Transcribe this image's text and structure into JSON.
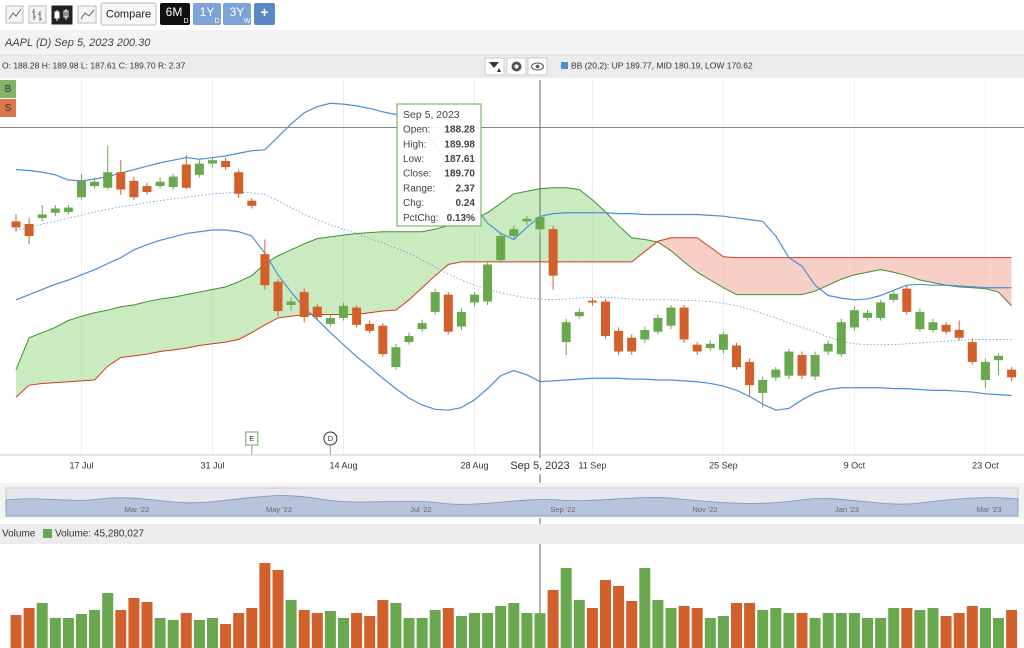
{
  "toolbar": {
    "compare": "Compare",
    "ranges": [
      {
        "label": "6M",
        "sub": "D"
      },
      {
        "label": "1Y",
        "sub": "D"
      },
      {
        "label": "3Y",
        "sub": "W"
      }
    ],
    "add": "+"
  },
  "header": {
    "symbol_line": "AAPL  (D) Sep 5, 2023 200.30",
    "ohlc_line": "O: 188.28 H: 189.98 L: 187.61 C: 189.70 R: 2.37",
    "bb_line": "BB (20,2): UP 189.77, MID 180.19, LOW 170.62"
  },
  "side_buttons": [
    "B",
    "S"
  ],
  "tooltip": {
    "title": "Sep 5, 2023",
    "rows": [
      [
        "Open:",
        "188.28"
      ],
      [
        "High:",
        "189.98"
      ],
      [
        "Low:",
        "187.61"
      ],
      [
        "Close:",
        "189.70"
      ],
      [
        "Range:",
        "2.37"
      ],
      [
        "Chg:",
        "0.24"
      ],
      [
        "PctChg:",
        "0.13%"
      ]
    ]
  },
  "navigator": {
    "labels": [
      "Mar '22",
      "May '22",
      "Jul '22",
      "Sep '22",
      "Nov '22",
      "Jan '23",
      "Mar '23"
    ]
  },
  "chart_data": [
    {
      "type": "candlestick",
      "up_color": "#6aa84f",
      "down_color": "#d2602c",
      "ylim": [
        162.1,
        205.6
      ],
      "crosshair_label": "Sep 5, 2023",
      "reference_line": 200.1,
      "xticks": [
        {
          "value": 5,
          "label": "17 Jul"
        },
        {
          "value": 15,
          "label": "31 Jul"
        },
        {
          "value": 25,
          "label": "14 Aug"
        },
        {
          "value": 35,
          "label": "28 Aug"
        },
        {
          "value": 44,
          "label": "11 Sep"
        },
        {
          "value": 54,
          "label": "25 Sep"
        },
        {
          "value": 64,
          "label": "9 Oct"
        },
        {
          "value": 74,
          "label": "23 Oct"
        }
      ],
      "events": [
        {
          "label": "E",
          "value": 18
        },
        {
          "label": "D",
          "value": 24
        }
      ],
      "ohlc": [
        [
          189.2,
          190.0,
          188.0,
          188.5
        ],
        [
          188.9,
          189.6,
          186.6,
          187.5
        ],
        [
          189.6,
          191.1,
          189.2,
          190.0
        ],
        [
          190.2,
          191.1,
          189.8,
          190.7
        ],
        [
          190.3,
          191.1,
          190.0,
          190.8
        ],
        [
          192.0,
          194.7,
          191.7,
          193.9
        ],
        [
          193.3,
          194.3,
          193.0,
          193.8
        ],
        [
          193.1,
          198.0,
          192.9,
          194.9
        ],
        [
          194.9,
          196.3,
          192.3,
          192.9
        ],
        [
          193.9,
          194.4,
          191.7,
          192.0
        ],
        [
          193.3,
          193.7,
          192.3,
          192.6
        ],
        [
          193.3,
          194.3,
          193.0,
          193.8
        ],
        [
          193.2,
          194.7,
          192.9,
          194.4
        ],
        [
          195.8,
          196.9,
          192.9,
          193.1
        ],
        [
          194.6,
          196.3,
          194.3,
          195.9
        ],
        [
          195.9,
          196.6,
          195.5,
          196.3
        ],
        [
          196.2,
          196.6,
          195.2,
          195.5
        ],
        [
          194.9,
          195.2,
          191.9,
          192.4
        ],
        [
          191.6,
          191.9,
          190.7,
          191.0
        ],
        [
          185.4,
          187.1,
          181.3,
          181.8
        ],
        [
          182.2,
          182.5,
          178.2,
          178.8
        ],
        [
          179.5,
          180.4,
          178.9,
          179.9
        ],
        [
          181.0,
          181.4,
          177.5,
          178.1
        ],
        [
          179.3,
          179.6,
          177.8,
          178.1
        ],
        [
          177.3,
          178.4,
          177.0,
          178.0
        ],
        [
          178.0,
          179.8,
          177.7,
          179.4
        ],
        [
          179.2,
          179.5,
          176.9,
          177.2
        ],
        [
          177.3,
          177.7,
          176.2,
          176.5
        ],
        [
          177.1,
          177.4,
          173.5,
          173.8
        ],
        [
          172.3,
          175.0,
          172.0,
          174.6
        ],
        [
          175.2,
          176.3,
          174.9,
          175.9
        ],
        [
          176.7,
          177.8,
          176.4,
          177.4
        ],
        [
          178.7,
          181.4,
          178.4,
          181.0
        ],
        [
          180.7,
          181.0,
          176.1,
          176.4
        ],
        [
          177.0,
          179.1,
          176.6,
          178.7
        ],
        [
          179.8,
          181.0,
          179.4,
          180.7
        ],
        [
          179.9,
          184.4,
          179.5,
          184.2
        ],
        [
          184.7,
          187.9,
          184.4,
          187.5
        ],
        [
          187.5,
          188.7,
          187.2,
          188.3
        ],
        [
          189.2,
          189.8,
          188.8,
          189.5
        ],
        [
          188.28,
          189.98,
          187.61,
          189.7
        ],
        [
          188.3,
          188.7,
          181.3,
          182.9
        ],
        [
          175.2,
          177.9,
          173.7,
          177.5
        ],
        [
          178.2,
          179.1,
          177.9,
          178.7
        ],
        [
          180.0,
          180.3,
          179.4,
          179.8
        ],
        [
          179.9,
          180.2,
          175.6,
          175.9
        ],
        [
          176.5,
          176.9,
          173.7,
          174.1
        ],
        [
          175.7,
          176.1,
          173.7,
          174.1
        ],
        [
          175.5,
          177.0,
          175.1,
          176.6
        ],
        [
          176.4,
          178.4,
          176.1,
          178.0
        ],
        [
          177.1,
          179.5,
          176.7,
          179.2
        ],
        [
          179.2,
          179.5,
          175.1,
          175.5
        ],
        [
          174.9,
          175.2,
          173.7,
          174.1
        ],
        [
          174.5,
          175.4,
          174.2,
          175.0
        ],
        [
          174.3,
          176.4,
          173.9,
          176.1
        ],
        [
          174.8,
          175.1,
          172.0,
          172.3
        ],
        [
          172.9,
          173.3,
          169.0,
          170.2
        ],
        [
          169.3,
          171.2,
          167.6,
          170.8
        ],
        [
          171.1,
          172.3,
          170.7,
          172.0
        ],
        [
          171.3,
          174.4,
          170.9,
          174.1
        ],
        [
          173.7,
          174.1,
          170.9,
          171.3
        ],
        [
          171.2,
          174.1,
          170.8,
          173.7
        ],
        [
          174.1,
          175.4,
          173.7,
          175.0
        ],
        [
          173.8,
          177.9,
          173.5,
          177.5
        ],
        [
          176.9,
          179.3,
          176.5,
          178.9
        ],
        [
          178.0,
          178.9,
          177.7,
          178.6
        ],
        [
          178.0,
          180.1,
          177.7,
          179.8
        ],
        [
          180.1,
          181.1,
          179.8,
          180.8
        ],
        [
          181.4,
          181.7,
          178.4,
          178.7
        ],
        [
          176.7,
          179.1,
          176.4,
          178.7
        ],
        [
          176.6,
          177.9,
          176.3,
          177.5
        ],
        [
          177.2,
          177.5,
          176.1,
          176.4
        ],
        [
          176.6,
          177.7,
          175.4,
          175.7
        ],
        [
          175.2,
          175.6,
          172.6,
          172.9
        ],
        [
          170.8,
          173.3,
          169.9,
          172.9
        ],
        [
          173.1,
          173.9,
          171.4,
          173.6
        ],
        [
          172.0,
          172.3,
          170.7,
          171.1
        ]
      ],
      "bollinger": {
        "color": "#4a8fd8",
        "upper": [
          195.2,
          195.1,
          194.9,
          194.6,
          194.0,
          193.9,
          194.1,
          194.4,
          194.8,
          195.2,
          195.6,
          196.0,
          196.3,
          196.6,
          196.4,
          196.6,
          196.8,
          197.1,
          197.4,
          197.5,
          199.0,
          200.5,
          201.8,
          202.5,
          202.9,
          202.8,
          202.6,
          202.3,
          201.9,
          201.6,
          200.8,
          199.8,
          198.0,
          195.5,
          193.0,
          191.0,
          189.0,
          187.8,
          187.1,
          188.5,
          189.77,
          190.1,
          190.2,
          190.2,
          190.2,
          190.2,
          190.1,
          190.1,
          190.0,
          190.0,
          190.0,
          190.0,
          190.0,
          189.9,
          189.8,
          189.6,
          189.4,
          189.2,
          187.5,
          185.0,
          184.0,
          181.8,
          180.6,
          180.3,
          180.1,
          180.2,
          180.6,
          181.2,
          181.8,
          181.9,
          181.8,
          181.8,
          181.7,
          181.6,
          181.5,
          181.5,
          181.5
        ],
        "middle": [
          188.2,
          188.5,
          188.9,
          189.2,
          189.6,
          189.9,
          190.3,
          190.6,
          190.9,
          191.1,
          191.4,
          191.6,
          191.8,
          192.0,
          192.2,
          192.4,
          192.5,
          192.6,
          192.5,
          192.3,
          191.6,
          190.8,
          190.0,
          189.4,
          188.8,
          188.3,
          187.8,
          187.2,
          186.7,
          186.1,
          185.5,
          184.7,
          183.9,
          183.1,
          182.4,
          181.8,
          181.3,
          180.9,
          180.6,
          180.3,
          180.19,
          180.1,
          180.2,
          180.3,
          180.4,
          180.4,
          180.3,
          180.2,
          180.1,
          180.1,
          180.1,
          180.0,
          180.0,
          179.9,
          179.7,
          179.4,
          179.0,
          178.5,
          178.0,
          177.4,
          176.9,
          176.4,
          175.8,
          175.3,
          175.0,
          174.9,
          174.9,
          174.9,
          175.0,
          175.1,
          175.2,
          175.3,
          175.4,
          175.5,
          175.5,
          175.5,
          175.5
        ],
        "lower": [
          180.1,
          180.7,
          181.3,
          181.9,
          182.4,
          183.0,
          183.6,
          184.3,
          185.0,
          185.9,
          186.5,
          187.0,
          187.4,
          187.8,
          188.0,
          188.2,
          188.2,
          188.0,
          187.5,
          185.5,
          183.0,
          181.0,
          179.2,
          177.8,
          176.3,
          174.9,
          173.5,
          172.3,
          171.0,
          169.8,
          168.7,
          167.9,
          167.4,
          167.3,
          167.6,
          168.5,
          169.8,
          171.3,
          171.9,
          171.4,
          170.62,
          170.7,
          170.8,
          170.9,
          171.0,
          171.0,
          171.0,
          170.9,
          170.9,
          170.8,
          170.8,
          170.7,
          170.6,
          170.4,
          170.1,
          169.6,
          168.9,
          168.0,
          167.3,
          167.5,
          168.5,
          169.3,
          169.7,
          169.9,
          169.9,
          169.9,
          169.9,
          169.8,
          169.8,
          169.7,
          169.6,
          169.6,
          169.5,
          169.4,
          169.2,
          169.1,
          169.0
        ]
      },
      "cloud": {
        "a_color": "#3f8f2f",
        "b_color": "#d43a22",
        "up_fill": "#9fd88a",
        "down_fill": "#f2a898",
        "span_a": [
          172.0,
          175.7,
          176.3,
          176.9,
          177.7,
          178.2,
          178.6,
          178.9,
          179.3,
          179.5,
          179.9,
          180.2,
          180.4,
          180.7,
          181.0,
          181.3,
          181.6,
          182.2,
          182.9,
          184.3,
          185.2,
          185.9,
          186.6,
          187.2,
          187.4,
          187.6,
          187.8,
          187.9,
          188.0,
          188.0,
          188.0,
          188.0,
          188.3,
          188.7,
          189.2,
          189.5,
          190.2,
          191.3,
          192.4,
          192.7,
          193.0,
          193.1,
          193.1,
          192.9,
          191.7,
          190.3,
          188.7,
          187.3,
          187.1,
          186.8,
          185.8,
          184.5,
          183.3,
          182.4,
          181.5,
          180.7,
          180.7,
          180.7,
          180.7,
          180.7,
          180.7,
          181.1,
          181.8,
          182.5,
          183.0,
          183.3,
          183.6,
          183.3,
          182.9,
          182.4,
          182.1,
          181.8,
          181.6,
          181.5,
          181.4,
          181.0,
          179.4
        ],
        "span_b": [
          168.8,
          170.2,
          170.4,
          170.5,
          170.6,
          170.7,
          170.8,
          172.4,
          173.4,
          173.6,
          173.8,
          174.1,
          174.3,
          174.5,
          174.8,
          175.0,
          175.2,
          175.5,
          176.3,
          177.2,
          178.0,
          178.2,
          178.4,
          178.4,
          178.4,
          178.4,
          178.4,
          178.6,
          178.8,
          178.9,
          180.1,
          181.5,
          182.9,
          184.2,
          184.5,
          184.5,
          184.5,
          184.5,
          184.5,
          184.5,
          184.5,
          184.5,
          184.5,
          184.5,
          184.5,
          184.5,
          184.5,
          184.5,
          185.7,
          186.9,
          187.3,
          187.3,
          187.3,
          186.2,
          185.1,
          185.0,
          185.0,
          185.0,
          185.0,
          185.0,
          185.0,
          185.0,
          185.0,
          185.0,
          185.0,
          185.0,
          185.0,
          185.0,
          185.0,
          185.0,
          185.0,
          185.0,
          185.0,
          185.0,
          185.0,
          185.0,
          185.0
        ]
      }
    },
    {
      "type": "bar",
      "title": "Volume",
      "legend": "Volume: 45,280,027",
      "legend_color": "#6aa84f",
      "ylim": [
        0,
        120900000
      ],
      "values": [
        42900000,
        52000000,
        58500000,
        39000000,
        39000000,
        44200000,
        49400000,
        71500000,
        49400000,
        65000000,
        59800000,
        39000000,
        36400000,
        45500000,
        36400000,
        39000000,
        31200000,
        45500000,
        52000000,
        110500000,
        101400000,
        62400000,
        49400000,
        45500000,
        48100000,
        39000000,
        45500000,
        41600000,
        62400000,
        58500000,
        39000000,
        39000000,
        49400000,
        52000000,
        41600000,
        45500000,
        45500000,
        54600000,
        58500000,
        45500000,
        45280027,
        75400000,
        104000000,
        62400000,
        52000000,
        88400000,
        80600000,
        61100000,
        104000000,
        62400000,
        52000000,
        54600000,
        52000000,
        39000000,
        41600000,
        58500000,
        58500000,
        49400000,
        52000000,
        45500000,
        45500000,
        39000000,
        45500000,
        45500000,
        45500000,
        39000000,
        39000000,
        52000000,
        52000000,
        49400000,
        52000000,
        41600000,
        45500000,
        54600000,
        52000000,
        39000000,
        49400000
      ]
    }
  ]
}
